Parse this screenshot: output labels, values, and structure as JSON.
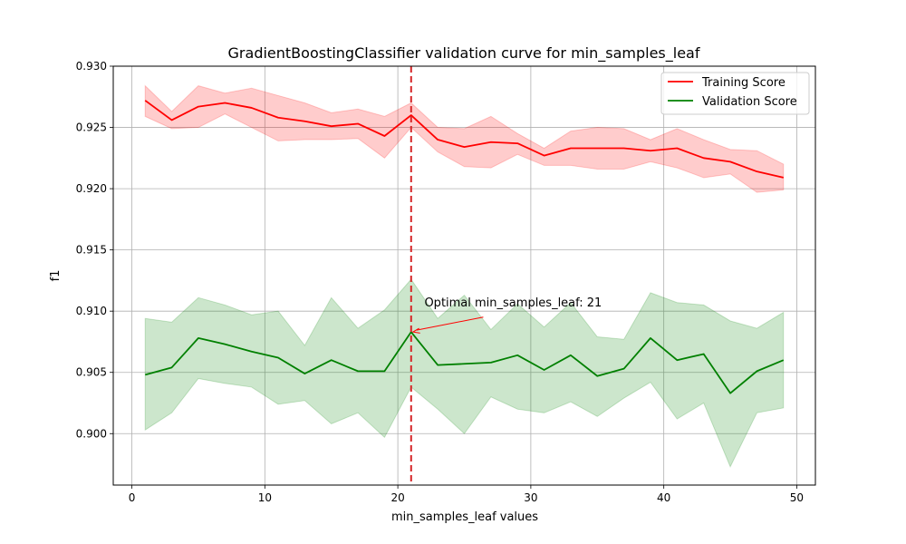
{
  "chart_data": {
    "type": "line",
    "title": "GradientBoostingClassifier validation curve for min_samples_leaf",
    "xlabel": "min_samples_leaf values",
    "ylabel": "f1",
    "xlim": [
      -1.4,
      51.4
    ],
    "ylim": [
      0.8958,
      0.93
    ],
    "xticks": [
      0,
      10,
      20,
      30,
      40,
      50
    ],
    "yticks": [
      0.9,
      0.905,
      0.91,
      0.915,
      0.92,
      0.925,
      0.93
    ],
    "grid": true,
    "legend_position": "top-right",
    "x": [
      1,
      3,
      5,
      7,
      9,
      11,
      13,
      15,
      17,
      19,
      21,
      23,
      25,
      27,
      29,
      31,
      33,
      35,
      37,
      39,
      41,
      43,
      45,
      47,
      49
    ],
    "series": [
      {
        "name": "Training Score",
        "color": "#ff0000",
        "band_color": "#ff0000",
        "values": [
          0.9272,
          0.9256,
          0.9267,
          0.927,
          0.9266,
          0.9258,
          0.9255,
          0.9251,
          0.9253,
          0.9243,
          0.926,
          0.924,
          0.9234,
          0.9238,
          0.9237,
          0.9227,
          0.9233,
          0.9233,
          0.9233,
          0.9231,
          0.9233,
          0.9225,
          0.9222,
          0.9214,
          0.9209
        ],
        "upper": [
          0.9284,
          0.9263,
          0.9284,
          0.9278,
          0.9282,
          0.9276,
          0.927,
          0.9262,
          0.9265,
          0.9259,
          0.927,
          0.925,
          0.9249,
          0.9259,
          0.9245,
          0.9233,
          0.9247,
          0.925,
          0.9249,
          0.924,
          0.9249,
          0.924,
          0.9232,
          0.9231,
          0.922
        ],
        "lower": [
          0.9259,
          0.9249,
          0.925,
          0.9261,
          0.925,
          0.9239,
          0.924,
          0.924,
          0.9241,
          0.9225,
          0.925,
          0.923,
          0.9218,
          0.9217,
          0.9228,
          0.9219,
          0.9219,
          0.9216,
          0.9216,
          0.9222,
          0.9217,
          0.9209,
          0.9212,
          0.9197,
          0.9199
        ]
      },
      {
        "name": "Validation Score",
        "color": "#008000",
        "band_color": "#008000",
        "values": [
          0.9048,
          0.9054,
          0.9078,
          0.9073,
          0.9067,
          0.9062,
          0.9049,
          0.906,
          0.9051,
          0.9051,
          0.9083,
          0.9056,
          0.9057,
          0.9058,
          0.9064,
          0.9052,
          0.9064,
          0.9047,
          0.9053,
          0.9078,
          0.906,
          0.9065,
          0.9033,
          0.9051,
          0.906
        ],
        "upper": [
          0.9094,
          0.9091,
          0.9111,
          0.9105,
          0.9097,
          0.91,
          0.9072,
          0.9111,
          0.9086,
          0.9101,
          0.9126,
          0.9094,
          0.9113,
          0.9085,
          0.9106,
          0.9087,
          0.9107,
          0.9079,
          0.9077,
          0.9115,
          0.9107,
          0.9105,
          0.9092,
          0.9086,
          0.9099
        ],
        "lower": [
          0.9003,
          0.9017,
          0.9045,
          0.9041,
          0.9038,
          0.9024,
          0.9027,
          0.9008,
          0.9017,
          0.8997,
          0.9038,
          0.902,
          0.9,
          0.903,
          0.902,
          0.9017,
          0.9026,
          0.9014,
          0.9029,
          0.9042,
          0.9012,
          0.9025,
          0.8973,
          0.9017,
          0.9021
        ]
      }
    ],
    "optimal": {
      "x": 21,
      "y": 0.9083,
      "label": "Optimal min_samples_leaf: 21",
      "label_x": 22,
      "label_y": 0.9104,
      "line_color": "#d62728"
    }
  }
}
